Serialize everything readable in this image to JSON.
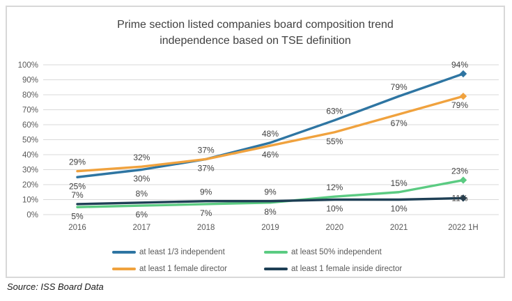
{
  "title": {
    "line1": "Prime section listed companies board composition trend",
    "line2": "independence based on TSE definition"
  },
  "source_note": "Source: ISS Board Data",
  "chart_data": {
    "type": "line",
    "title": "Prime section listed companies board composition trend independence based on TSE definition",
    "categories": [
      "2016",
      "2017",
      "2018",
      "2019",
      "2020",
      "2021",
      "2022 1H"
    ],
    "series": [
      {
        "name": "at least 1/3 independent",
        "color": "#2E75A2",
        "values": [
          25,
          30,
          37,
          48,
          63,
          79,
          94
        ],
        "label_pos": [
          "below",
          "below",
          "above",
          "above",
          "above",
          "above",
          "above"
        ]
      },
      {
        "name": "at least 1 female director",
        "color": "#F0A23E",
        "values": [
          29,
          32,
          37,
          46,
          55,
          67,
          79
        ],
        "label_pos": [
          "above",
          "above",
          "below",
          "below",
          "below",
          "below",
          "below"
        ]
      },
      {
        "name": "at least 50% independent",
        "color": "#5BCB82",
        "values": [
          5,
          6,
          7,
          8,
          12,
          15,
          23
        ],
        "label_pos": [
          "below",
          "below",
          "below",
          "below",
          "above",
          "above",
          "above"
        ]
      },
      {
        "name": "at least 1 female inside director",
        "color": "#1E3F55",
        "values": [
          7,
          8,
          9,
          9,
          10,
          10,
          11
        ],
        "label_pos": [
          "above",
          "above",
          "above",
          "above",
          "below",
          "below",
          "online"
        ]
      }
    ],
    "ylim": [
      0,
      100
    ],
    "y_tick_labels": [
      "0%",
      "10%",
      "20%",
      "30%",
      "40%",
      "50%",
      "60%",
      "70%",
      "80%",
      "90%",
      "100%"
    ],
    "grid": true,
    "grid_color": "#D9D9D9",
    "tick_label_color": "#595959",
    "data_label_color": "#3F3F3F",
    "legend_position": "bottom",
    "end_marker": "diamond"
  }
}
